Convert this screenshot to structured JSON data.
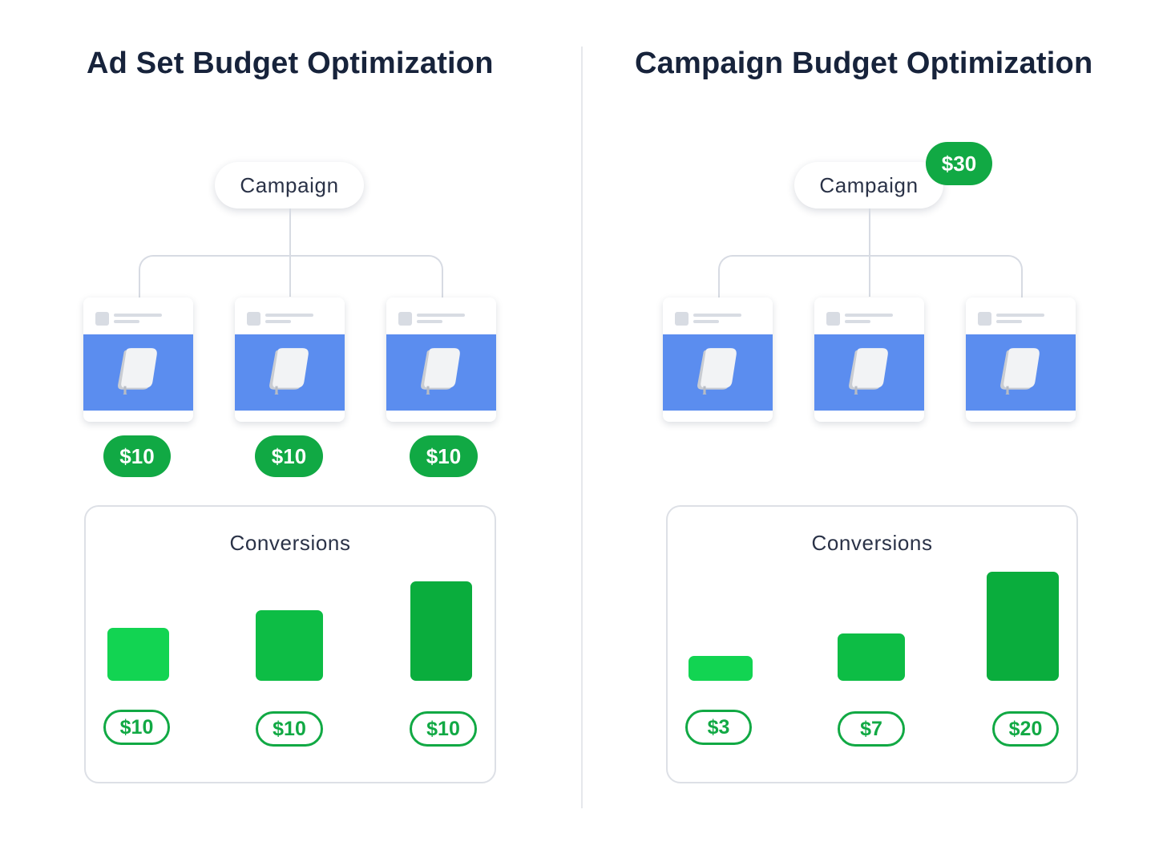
{
  "left": {
    "title": "Ad Set Budget Optimization",
    "campaign_label": "Campaign",
    "adset_budgets": [
      "$10",
      "$10",
      "$10"
    ],
    "conversions_label": "Conversions",
    "conversion_values": [
      "$10",
      "$10",
      "$10"
    ]
  },
  "right": {
    "title": "Campaign Budget Optimization",
    "campaign_label": "Campaign",
    "campaign_budget": "$30",
    "conversions_label": "Conversions",
    "conversion_values": [
      "$3",
      "$7",
      "$20"
    ]
  },
  "icons": {
    "adset_card_image": "notebook-icon"
  },
  "colors": {
    "green_dark": "#0aad3d",
    "green_mid": "#0dbd45",
    "green_light": "#12d452",
    "ad_image_blue": "#5b8def"
  }
}
